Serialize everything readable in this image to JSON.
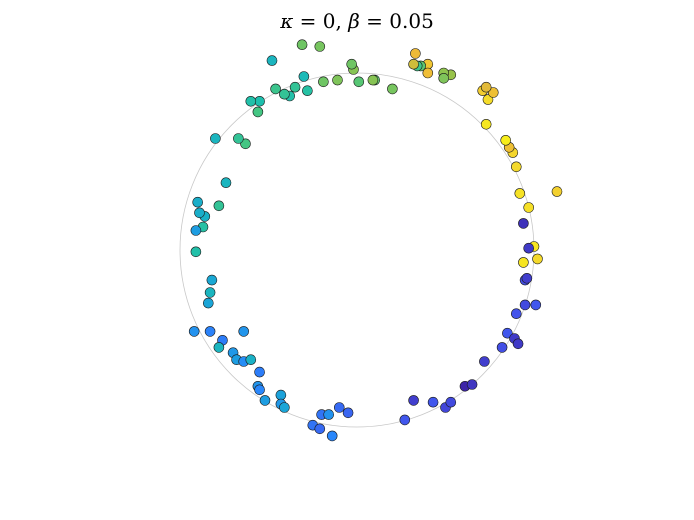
{
  "chart_data": {
    "type": "scatter",
    "title": {
      "kappa_symbol": "κ",
      "kappa_eq": " = 0, ",
      "beta_symbol": "β",
      "beta_eq": " = 0.05"
    },
    "xlim": [
      -1.5,
      1.5
    ],
    "ylim": [
      -1.2,
      1.2
    ],
    "grid": false,
    "axes_visible": false,
    "reference_circle": {
      "radius": 1.0,
      "color": "#c8c8c8"
    },
    "marker": {
      "edge_color": "#1a1a1a"
    },
    "colormap": "parula",
    "colormap_stops": [
      "#3e26a8",
      "#4353ec",
      "#2888fb",
      "#1aa6d6",
      "#1bbfb0",
      "#4bc77c",
      "#a5c241",
      "#eeb937",
      "#f5dc2a",
      "#f9fb0e"
    ],
    "points": [
      {
        "x": 0.1,
        "y": 0.96,
        "c": 0.58
      },
      {
        "x": 0.01,
        "y": 0.95,
        "c": 0.57
      },
      {
        "x": -0.02,
        "y": 1.02,
        "c": 0.63
      },
      {
        "x": -0.03,
        "y": 1.05,
        "c": 0.6
      },
      {
        "x": -0.11,
        "y": 0.96,
        "c": 0.62
      },
      {
        "x": -0.19,
        "y": 0.95,
        "c": 0.6
      },
      {
        "x": -0.28,
        "y": 0.9,
        "c": 0.47
      },
      {
        "x": -0.35,
        "y": 0.92,
        "c": 0.5
      },
      {
        "x": -0.38,
        "y": 0.87,
        "c": 0.46
      },
      {
        "x": -0.3,
        "y": 0.98,
        "c": 0.42
      },
      {
        "x": -0.41,
        "y": 0.88,
        "c": 0.5
      },
      {
        "x": -0.46,
        "y": 0.91,
        "c": 0.52
      },
      {
        "x": -0.55,
        "y": 0.84,
        "c": 0.45
      },
      {
        "x": -0.56,
        "y": 0.78,
        "c": 0.54
      },
      {
        "x": -0.6,
        "y": 0.84,
        "c": 0.46
      },
      {
        "x": -0.63,
        "y": 0.6,
        "c": 0.54
      },
      {
        "x": -0.67,
        "y": 0.63,
        "c": 0.5
      },
      {
        "x": -0.8,
        "y": 0.63,
        "c": 0.4
      },
      {
        "x": -0.74,
        "y": 0.38,
        "c": 0.4
      },
      {
        "x": -0.78,
        "y": 0.25,
        "c": 0.5
      },
      {
        "x": -0.86,
        "y": 0.19,
        "c": 0.38
      },
      {
        "x": -0.87,
        "y": 0.13,
        "c": 0.47
      },
      {
        "x": -0.89,
        "y": 0.21,
        "c": 0.37
      },
      {
        "x": -0.9,
        "y": 0.27,
        "c": 0.37
      },
      {
        "x": -0.91,
        "y": 0.11,
        "c": 0.3
      },
      {
        "x": -0.91,
        "y": -0.01,
        "c": 0.46
      },
      {
        "x": -0.82,
        "y": -0.17,
        "c": 0.34
      },
      {
        "x": -0.83,
        "y": -0.24,
        "c": 0.4
      },
      {
        "x": -0.84,
        "y": -0.3,
        "c": 0.33
      },
      {
        "x": -0.92,
        "y": -0.46,
        "c": 0.26
      },
      {
        "x": -0.83,
        "y": -0.46,
        "c": 0.21
      },
      {
        "x": -0.76,
        "y": -0.51,
        "c": 0.2
      },
      {
        "x": -0.64,
        "y": -0.46,
        "c": 0.27
      },
      {
        "x": -0.78,
        "y": -0.55,
        "c": 0.4
      },
      {
        "x": -0.7,
        "y": -0.58,
        "c": 0.28
      },
      {
        "x": -0.68,
        "y": -0.62,
        "c": 0.3
      },
      {
        "x": -0.64,
        "y": -0.63,
        "c": 0.24
      },
      {
        "x": -0.6,
        "y": -0.62,
        "c": 0.38
      },
      {
        "x": -0.55,
        "y": -0.69,
        "c": 0.2
      },
      {
        "x": -0.56,
        "y": -0.77,
        "c": 0.27
      },
      {
        "x": -0.55,
        "y": -0.79,
        "c": 0.22
      },
      {
        "x": -0.52,
        "y": -0.85,
        "c": 0.3
      },
      {
        "x": -0.43,
        "y": -0.82,
        "c": 0.32
      },
      {
        "x": -0.43,
        "y": -0.87,
        "c": 0.28
      },
      {
        "x": -0.41,
        "y": -0.89,
        "c": 0.33
      },
      {
        "x": -0.2,
        "y": -0.93,
        "c": 0.18
      },
      {
        "x": -0.16,
        "y": -0.93,
        "c": 0.26
      },
      {
        "x": -0.1,
        "y": -0.89,
        "c": 0.16
      },
      {
        "x": -0.05,
        "y": -0.92,
        "c": 0.15
      },
      {
        "x": -0.25,
        "y": -0.99,
        "c": 0.18
      },
      {
        "x": -0.21,
        "y": -1.01,
        "c": 0.16
      },
      {
        "x": -0.14,
        "y": -1.05,
        "c": 0.22
      },
      {
        "x": 0.27,
        "y": -0.96,
        "c": 0.12
      },
      {
        "x": 0.32,
        "y": -0.85,
        "c": 0.06
      },
      {
        "x": 0.43,
        "y": -0.86,
        "c": 0.12
      },
      {
        "x": 0.5,
        "y": -0.89,
        "c": 0.08
      },
      {
        "x": 0.53,
        "y": -0.86,
        "c": 0.09
      },
      {
        "x": 0.61,
        "y": -0.77,
        "c": 0.0
      },
      {
        "x": 0.65,
        "y": -0.76,
        "c": 0.04
      },
      {
        "x": 0.72,
        "y": -0.63,
        "c": 0.06
      },
      {
        "x": 0.82,
        "y": -0.55,
        "c": 0.1
      },
      {
        "x": 0.85,
        "y": -0.47,
        "c": 0.12
      },
      {
        "x": 0.89,
        "y": -0.5,
        "c": 0.05
      },
      {
        "x": 0.91,
        "y": -0.53,
        "c": 0.05
      },
      {
        "x": 0.9,
        "y": -0.36,
        "c": 0.11
      },
      {
        "x": 0.95,
        "y": -0.31,
        "c": 0.09
      },
      {
        "x": 1.01,
        "y": -0.31,
        "c": 0.12
      },
      {
        "x": 0.95,
        "y": -0.17,
        "c": 0.1
      },
      {
        "x": 0.96,
        "y": -0.16,
        "c": 0.06
      },
      {
        "x": 1.0,
        "y": 0.02,
        "c": 0.92
      },
      {
        "x": 1.02,
        "y": -0.05,
        "c": 0.88
      },
      {
        "x": 0.97,
        "y": 0.01,
        "c": 0.05
      },
      {
        "x": 0.94,
        "y": -0.07,
        "c": 0.92
      },
      {
        "x": 0.94,
        "y": 0.15,
        "c": 0.03
      },
      {
        "x": 0.97,
        "y": 0.24,
        "c": 0.9
      },
      {
        "x": 0.92,
        "y": 0.32,
        "c": 0.91
      },
      {
        "x": 1.13,
        "y": 0.33,
        "c": 0.85
      },
      {
        "x": 0.9,
        "y": 0.47,
        "c": 0.88
      },
      {
        "x": 0.88,
        "y": 0.55,
        "c": 0.87
      },
      {
        "x": 0.86,
        "y": 0.58,
        "c": 0.8
      },
      {
        "x": 0.84,
        "y": 0.62,
        "c": 0.95
      },
      {
        "x": 0.73,
        "y": 0.71,
        "c": 0.93
      },
      {
        "x": 0.74,
        "y": 0.85,
        "c": 0.89
      },
      {
        "x": 0.77,
        "y": 0.89,
        "c": 0.8
      },
      {
        "x": 0.71,
        "y": 0.9,
        "c": 0.84
      },
      {
        "x": 0.73,
        "y": 0.92,
        "c": 0.76
      },
      {
        "x": 0.53,
        "y": 0.99,
        "c": 0.65
      },
      {
        "x": 0.49,
        "y": 1.0,
        "c": 0.64
      },
      {
        "x": 0.4,
        "y": 1.05,
        "c": 0.82
      },
      {
        "x": 0.4,
        "y": 1.0,
        "c": 0.79
      },
      {
        "x": 0.36,
        "y": 1.04,
        "c": 0.58
      },
      {
        "x": 0.34,
        "y": 1.04,
        "c": 0.53
      },
      {
        "x": 0.33,
        "y": 1.11,
        "c": 0.78
      },
      {
        "x": 0.32,
        "y": 1.05,
        "c": 0.73
      },
      {
        "x": 0.09,
        "y": 0.96,
        "c": 0.63
      },
      {
        "x": 0.2,
        "y": 0.91,
        "c": 0.61
      },
      {
        "x": 0.49,
        "y": 0.97,
        "c": 0.62
      },
      {
        "x": -0.48,
        "y": 1.07,
        "c": 0.4
      },
      {
        "x": -0.31,
        "y": 1.16,
        "c": 0.6
      },
      {
        "x": -0.21,
        "y": 1.15,
        "c": 0.61
      }
    ]
  }
}
